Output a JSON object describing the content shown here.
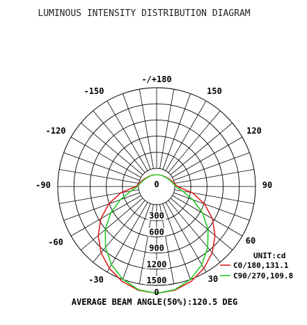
{
  "chart_data": {
    "type": "polar",
    "title": "LUMINOUS INTENSITY DISTRIBUTION DIAGRAM",
    "unit_label": "UNIT:cd",
    "footer": "AVERAGE BEAM ANGLE(50%):120.5 DEG",
    "angle_labels": [
      {
        "angle": 180,
        "text": "-/+180"
      },
      {
        "angle": 150,
        "text": "150"
      },
      {
        "angle": -150,
        "text": "-150"
      },
      {
        "angle": 120,
        "text": "120"
      },
      {
        "angle": -120,
        "text": "-120"
      },
      {
        "angle": 90,
        "text": "90"
      },
      {
        "angle": -90,
        "text": "-90"
      },
      {
        "angle": 60,
        "text": "60"
      },
      {
        "angle": -60,
        "text": "-60"
      },
      {
        "angle": 30,
        "text": "30"
      },
      {
        "angle": -30,
        "text": "-30"
      },
      {
        "angle": 0,
        "text": "0"
      }
    ],
    "radial_ticks": [
      {
        "value": 0,
        "text": "0"
      },
      {
        "value": 300,
        "text": "300"
      },
      {
        "value": 600,
        "text": "600"
      },
      {
        "value": 900,
        "text": "900"
      },
      {
        "value": 1200,
        "text": "1200"
      },
      {
        "value": 1500,
        "text": "1500"
      }
    ],
    "radial_max": 1500,
    "angle_step": 10,
    "series": [
      {
        "name": "C0/180,131.1",
        "color": "#e02020",
        "angles": [
          0,
          10,
          20,
          30,
          40,
          50,
          60,
          70,
          80,
          90
        ],
        "values": [
          1650,
          1620,
          1540,
          1420,
          1270,
          1080,
          860,
          610,
          340,
          50
        ]
      },
      {
        "name": "C90/270,109.8",
        "color": "#22cc22",
        "angles": [
          0,
          10,
          20,
          30,
          40,
          50,
          60,
          70,
          80,
          90
        ],
        "values": [
          1650,
          1610,
          1500,
          1340,
          1140,
          910,
          650,
          380,
          150,
          20
        ]
      }
    ]
  }
}
